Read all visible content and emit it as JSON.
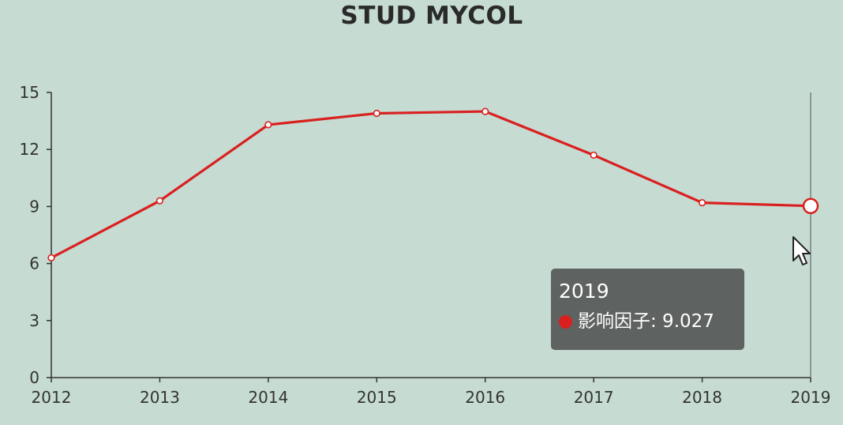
{
  "chart_data": {
    "type": "line",
    "title": "STUD MYCOL",
    "categories": [
      "2012",
      "2013",
      "2014",
      "2015",
      "2016",
      "2017",
      "2018",
      "2019"
    ],
    "series": [
      {
        "name": "影响因子",
        "values": [
          6.3,
          9.3,
          13.3,
          13.9,
          14.0,
          11.7,
          9.2,
          9.027
        ],
        "color": "#d9201f"
      }
    ],
    "ylim": [
      0,
      15
    ],
    "yticks": [
      "0",
      "3",
      "6",
      "9",
      "12",
      "15"
    ],
    "grid": false,
    "highlighted_index": 7
  },
  "tooltip": {
    "category": "2019",
    "series_name": "影响因子",
    "value": "9.027",
    "text": "影响因子: 9.027",
    "dot_color": "#d9201f"
  },
  "colors": {
    "background": "#c6dbd2",
    "line": "#d9201f",
    "axis": "#333333",
    "tooltip_bg": "#585c5b"
  },
  "icons": {
    "cursor": "mouse-pointer-icon"
  }
}
